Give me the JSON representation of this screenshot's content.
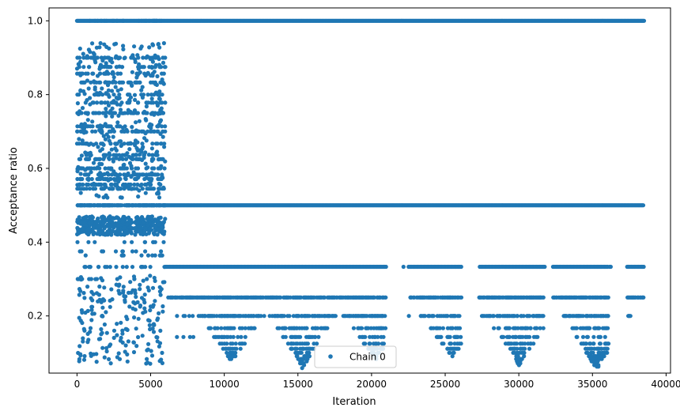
{
  "chart_data": {
    "type": "scatter",
    "title": "",
    "xlabel": "Iteration",
    "ylabel": "Acceptance ratio",
    "xlim": [
      -1900,
      40300
    ],
    "ylim": [
      0.045,
      1.035
    ],
    "xticks": [
      0,
      5000,
      10000,
      15000,
      20000,
      25000,
      30000,
      35000,
      40000
    ],
    "yticks": [
      0.2,
      0.4,
      0.6,
      0.8,
      1.0
    ],
    "ytick_labels": [
      "0.2",
      "0.4",
      "0.6",
      "0.8",
      "1.0"
    ],
    "grid": false,
    "legend": {
      "position": "bottom-center",
      "entries": [
        "Chain 0"
      ]
    },
    "marker_color": "#1f77b4",
    "series": [
      {
        "name": "Chain 0",
        "description_segments": [
          {
            "x_range": [
              0,
              6000
            ],
            "y_levels": [
              1.0,
              0.9,
              0.875,
              0.857,
              0.833,
              0.8,
              0.778,
              0.75,
              0.714,
              0.7,
              0.667,
              0.636,
              0.625,
              0.6,
              0.583,
              0.571,
              0.556,
              0.545,
              0.5,
              0.455,
              0.444,
              0.429,
              0.4,
              0.375,
              0.364,
              0.333,
              0.3,
              0.286,
              0.273,
              0.25,
              0.222,
              0.2,
              0.182,
              0.167,
              0.143,
              0.125,
              0.1,
              0.091,
              0.083,
              0.077
            ],
            "y_continuous_ranges": [
              [
                0.52,
                0.94
              ],
              [
                0.42,
                0.47
              ],
              [
                0.07,
                0.31
              ]
            ]
          },
          {
            "x_range": [
              6000,
              38500
            ],
            "y_levels": [
              1.0,
              0.5,
              0.333,
              0.25,
              0.2,
              0.167,
              0.143,
              0.125,
              0.111,
              0.1,
              0.091,
              0.083,
              0.077,
              0.071,
              0.067,
              0.063,
              0.059,
              0.056
            ]
          }
        ],
        "gaps_x": [
          [
            21000,
            22500
          ],
          [
            26100,
            27300
          ],
          [
            31700,
            32300
          ],
          [
            36100,
            37300
          ]
        ],
        "valleys": [
          {
            "x_center": 10500,
            "min_y": 0.077
          },
          {
            "x_center": 15300,
            "min_y": 0.059
          },
          {
            "x_center": 20300,
            "min_y": 0.083
          },
          {
            "x_center": 25500,
            "min_y": 0.091
          },
          {
            "x_center": 30000,
            "min_y": 0.067
          },
          {
            "x_center": 35300,
            "min_y": 0.056
          }
        ]
      }
    ]
  }
}
